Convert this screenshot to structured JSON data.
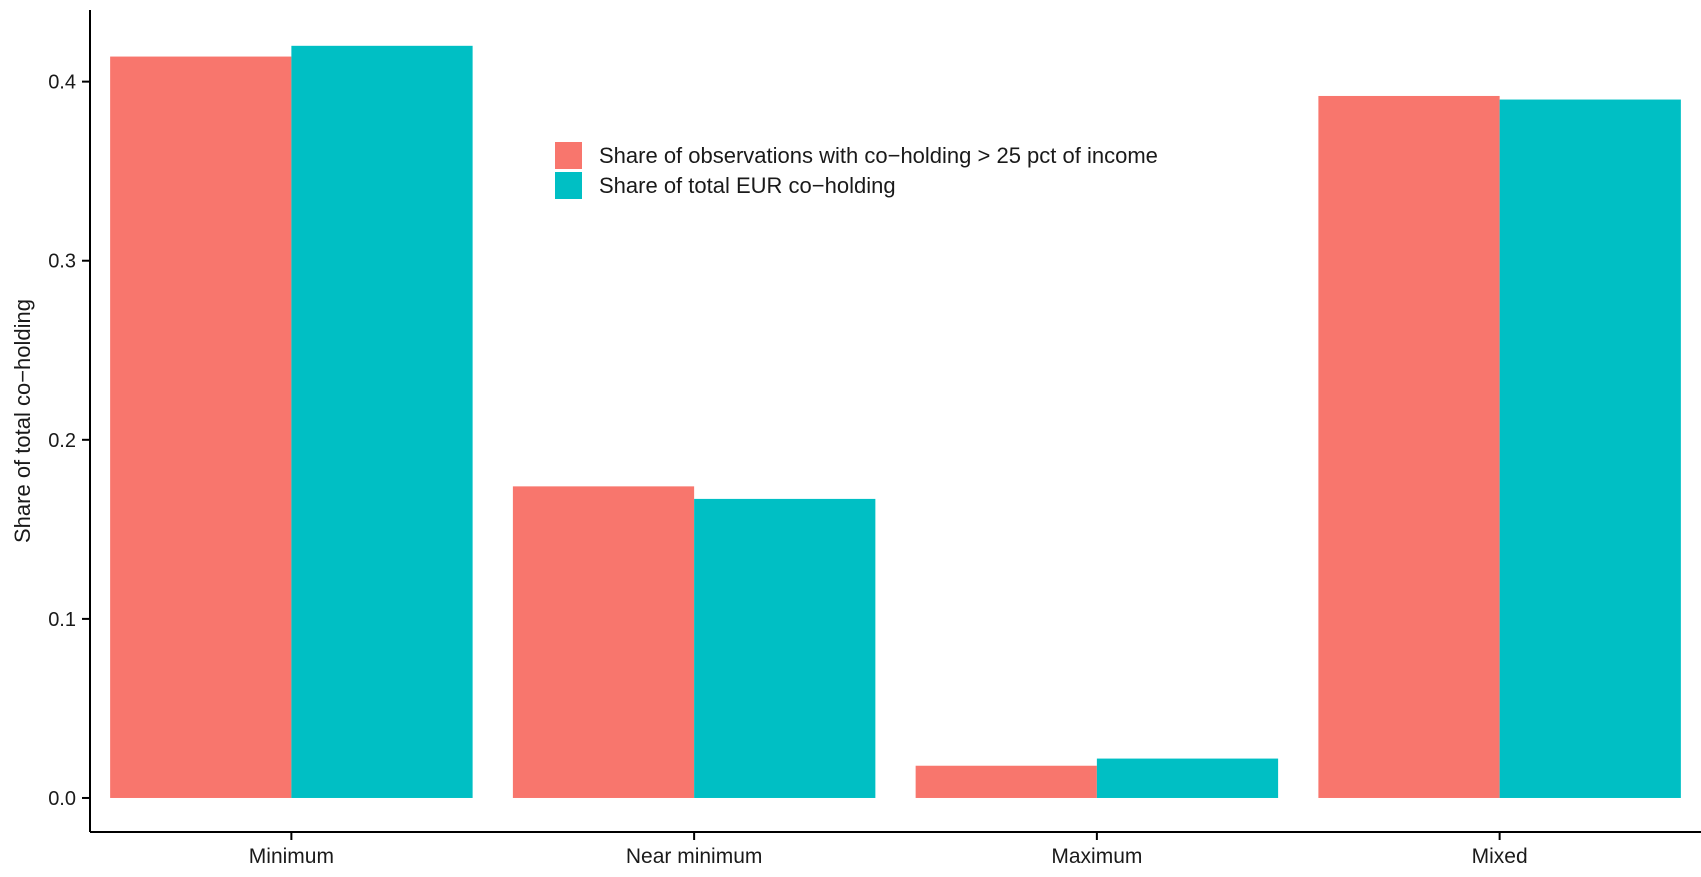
{
  "chart_data": {
    "type": "bar",
    "title": "",
    "xlabel": "",
    "ylabel": "Share of total co−holding",
    "categories": [
      "Minimum",
      "Near minimum",
      "Maximum",
      "Mixed"
    ],
    "series": [
      {
        "name": "Share of observations with co−holding > 25 pct of income",
        "color": "#F8766D",
        "values": [
          0.414,
          0.174,
          0.018,
          0.392
        ]
      },
      {
        "name": "Share of total EUR co−holding",
        "color": "#00BFC4",
        "values": [
          0.42,
          0.167,
          0.022,
          0.39
        ]
      }
    ],
    "ylim": [
      -0.019,
      0.44
    ],
    "yticks": [
      0.0,
      0.1,
      0.2,
      0.3,
      0.4
    ],
    "ytick_labels": [
      "0.0",
      "0.1",
      "0.2",
      "0.3",
      "0.4"
    ],
    "grid": false,
    "legend_position": "inside-top-center"
  }
}
